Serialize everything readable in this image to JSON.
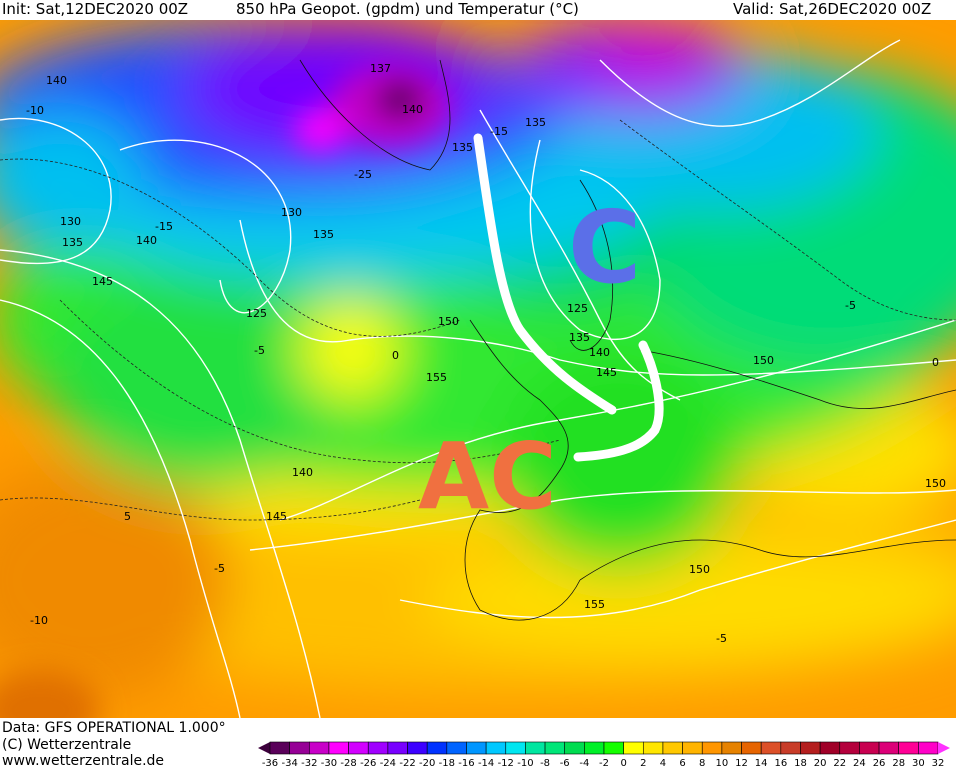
{
  "header": {
    "init": "Init: Sat,12DEC2020 00Z",
    "title": "850 hPa Geopot. (gpdm) und Temperatur (°C)",
    "valid": "Valid: Sat,26DEC2020 00Z"
  },
  "footer": {
    "data": "Data: GFS OPERATIONAL 1.000°",
    "copyright": "(C) Wetterzentrale",
    "url": "www.wetterzentrale.de"
  },
  "annotations": {
    "low": "C",
    "high": "AC",
    "low_color": "#5b6fe8",
    "high_color": "#f07040"
  },
  "geopotential_labels": [
    "140",
    "137",
    "140",
    "135",
    "135",
    "130",
    "135",
    "140",
    "145",
    "130",
    "135",
    "125",
    "150",
    "125",
    "135",
    "140",
    "145",
    "150",
    "155",
    "140",
    "145",
    "150",
    "150",
    "155"
  ],
  "temperature_labels": [
    "-10",
    "-15",
    "-25",
    "-5",
    "0",
    "5",
    "-5",
    "-10",
    "-5",
    "0",
    "-5",
    "-15"
  ],
  "colorbar": {
    "ticks": [
      "-36",
      "-34",
      "-32",
      "-30",
      "-28",
      "-26",
      "-24",
      "-22",
      "-20",
      "-18",
      "-16",
      "-14",
      "-12",
      "-10",
      "-8",
      "-6",
      "-4",
      "-2",
      "0",
      "2",
      "4",
      "6",
      "8",
      "10",
      "12",
      "14",
      "16",
      "18",
      "20",
      "22",
      "24",
      "26",
      "28",
      "30",
      "32"
    ],
    "colors": [
      "#5a005a",
      "#960096",
      "#c800c8",
      "#ff00ff",
      "#d200ff",
      "#a000ff",
      "#7800ff",
      "#3c00ff",
      "#0032ff",
      "#0064ff",
      "#0096ff",
      "#00c8ff",
      "#00e6f0",
      "#00e6a0",
      "#00e678",
      "#00dc50",
      "#00f028",
      "#14ff00",
      "#ffff00",
      "#ffe600",
      "#ffc800",
      "#ffb400",
      "#ff9600",
      "#e68200",
      "#e66400",
      "#dc5028",
      "#c83c28",
      "#b41e1e",
      "#a00028",
      "#b4003c",
      "#c80050",
      "#dc0078",
      "#ff0096",
      "#ff00c8"
    ],
    "under_color": "#3c003c",
    "over_color": "#ff32ff"
  }
}
